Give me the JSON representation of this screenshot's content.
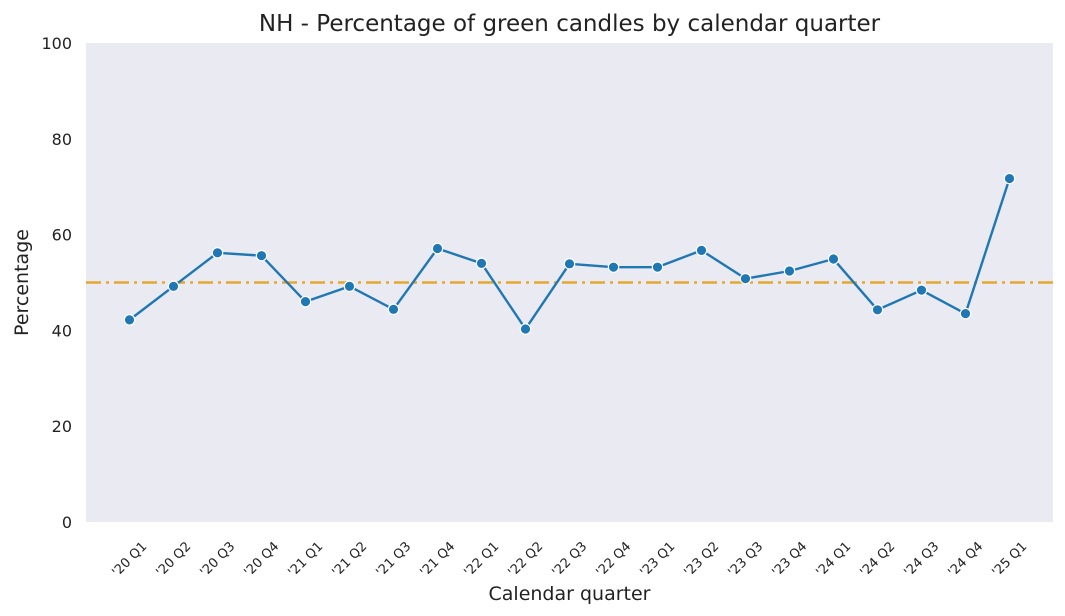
{
  "chart_data": {
    "type": "line",
    "title": "NH - Percentage of green candles by calendar quarter",
    "xlabel": "Calendar quarter",
    "ylabel": "Percentage",
    "ylim": [
      0,
      100
    ],
    "yticks": [
      "0",
      "20",
      "40",
      "60",
      "80",
      "100"
    ],
    "grid": false,
    "categories": [
      "'20 Q1",
      "'20 Q2",
      "'20 Q3",
      "'20 Q4",
      "'21 Q1",
      "'21 Q2",
      "'21 Q3",
      "'21 Q4",
      "'22 Q1",
      "'22 Q2",
      "'22 Q3",
      "'22 Q4",
      "'23 Q1",
      "'23 Q2",
      "'23 Q3",
      "'23 Q4",
      "'24 Q1",
      "'24 Q2",
      "'24 Q3",
      "'24 Q4",
      "'25 Q1"
    ],
    "series": [
      {
        "values": [
          42.2,
          49.2,
          56.2,
          55.6,
          46.0,
          49.2,
          44.4,
          57.1,
          54.0,
          40.3,
          53.9,
          53.2,
          53.2,
          56.7,
          50.8,
          52.4,
          54.9,
          44.3,
          48.4,
          43.5,
          71.7
        ],
        "color": "#1f77b4"
      }
    ],
    "reference_line": {
      "y": 50,
      "style": "dash-dot",
      "color": "#e5a72e"
    },
    "colors": {
      "plot_background": "#eaeaf2"
    }
  }
}
